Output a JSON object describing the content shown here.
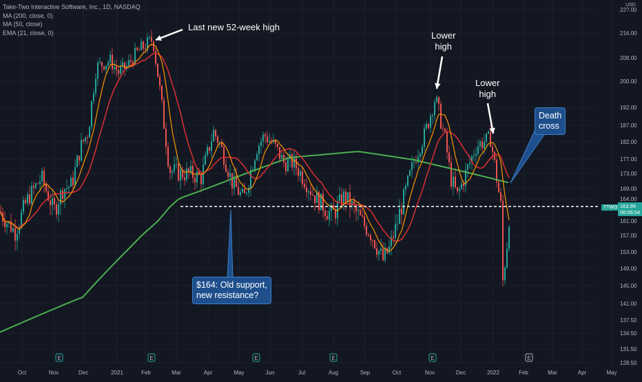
{
  "legend": {
    "title": "Take-Two Interactive Software, Inc., 1D, NASDAQ",
    "ma200": "MA (200, close, 0)",
    "ma50": "MA (50, close)",
    "ema21": "EMA (21, close, 0)"
  },
  "currency": "USD",
  "price_label": "164.00",
  "last_price": "163.99",
  "countdown": "06:06:54",
  "ticker": "TTWO",
  "annotations": {
    "new_high": "Last new 52-week high",
    "lower_high_1_line1": "Lower",
    "lower_high_1_line2": "high",
    "lower_high_2_line1": "Lower",
    "lower_high_2_line2": "high",
    "death_cross_line1": "Death",
    "death_cross_line2": "cross",
    "support_line1": "$164: Old support,",
    "support_line2": "new resistance?"
  },
  "colors": {
    "background": "#131722",
    "up": "#26a69a",
    "down": "#ef5350",
    "ma200": "#4caf50",
    "ma50": "#d32f2f",
    "ema21": "#ff9800",
    "callout": "#1e4f8c"
  },
  "earnings_marker": "E",
  "chart_data": {
    "type": "candlestick",
    "y_ticks": [
      "22?.00",
      "216.00",
      "208.00",
      "200.00",
      "192.00",
      "187.00",
      "182.00",
      "177.00",
      "173.00",
      "169.00",
      "164.00",
      "161.00",
      "157.00",
      "153.00",
      "149.00",
      "145.00",
      "141.00",
      "137.50",
      "134.50",
      "131.50",
      "128.50"
    ],
    "x_ticks": [
      "Oct",
      "Nov",
      "Dec",
      "2021",
      "Feb",
      "Mar",
      "Apr",
      "May",
      "Jun",
      "Jul",
      "Aug",
      "Sep",
      "Oct",
      "Nov",
      "Dec",
      "2022",
      "Feb",
      "Mar",
      "Apr",
      "May"
    ],
    "support_level": 164,
    "close_key_points": [
      [
        "Sep 2020",
        163
      ],
      [
        "early Oct",
        158
      ],
      [
        "mid Oct",
        166
      ],
      [
        "late Oct",
        172
      ],
      [
        "early Nov",
        163
      ],
      [
        "mid Nov",
        169
      ],
      [
        "late Nov",
        170
      ],
      [
        "early Dec",
        181
      ],
      [
        "mid Dec",
        185
      ],
      [
        "late Dec",
        205
      ],
      [
        "early Jan",
        207
      ],
      [
        "mid Jan",
        203
      ],
      [
        "late Jan",
        205
      ],
      [
        "early Feb",
        210
      ],
      [
        "Feb high",
        214
      ],
      [
        "late Feb",
        194
      ],
      [
        "early Mar",
        174
      ],
      [
        "mid Mar",
        173
      ],
      [
        "late Mar",
        173
      ],
      [
        "early Apr",
        172
      ],
      [
        "mid Apr",
        185
      ],
      [
        "late Apr",
        181
      ],
      [
        "early May",
        171
      ],
      [
        "mid May",
        166
      ],
      [
        "late May",
        180
      ],
      [
        "early Jun",
        184
      ],
      [
        "mid Jun",
        181
      ],
      [
        "late Jun",
        176
      ],
      [
        "early Jul",
        176
      ],
      [
        "mid Jul",
        172
      ],
      [
        "late Jul",
        167
      ],
      [
        "early Aug",
        162
      ],
      [
        "mid Aug",
        167
      ],
      [
        "late Aug",
        163
      ],
      [
        "early Sep",
        157
      ],
      [
        "mid Sep",
        151
      ],
      [
        "late Sep",
        154
      ],
      [
        "early Oct",
        165
      ],
      [
        "mid Oct",
        177
      ],
      [
        "late Oct",
        184
      ],
      [
        "Nov high",
        195
      ],
      [
        "mid Nov",
        183
      ],
      [
        "late Nov",
        172
      ],
      [
        "early Dec",
        167
      ],
      [
        "mid Dec",
        173
      ],
      [
        "late Dec",
        181
      ],
      [
        "Dec high",
        183
      ],
      [
        "early Jan",
        163
      ],
      [
        "mid Jan",
        143
      ],
      [
        "late Jan",
        155
      ],
      [
        "Feb 2022",
        164
      ]
    ],
    "series": [
      {
        "name": "MA (200, close, 0)",
        "color": "#4caf50"
      },
      {
        "name": "MA (50, close)",
        "color": "#d32f2f"
      },
      {
        "name": "EMA (21, close, 0)",
        "color": "#ff9800"
      }
    ]
  }
}
